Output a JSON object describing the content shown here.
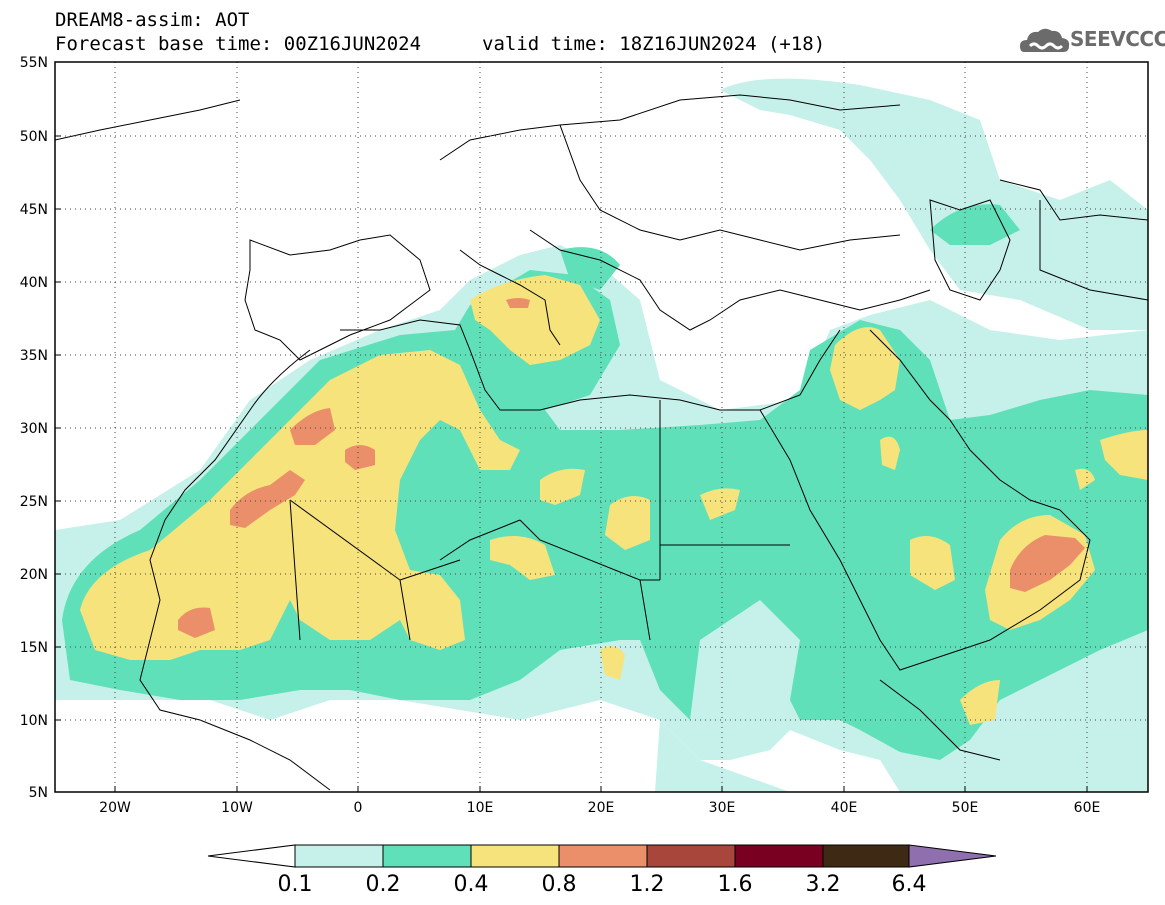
{
  "header": {
    "title": "DREAM8-assim: AOT",
    "base_time": "Forecast base time: 00Z16JUN2024",
    "valid_time": "valid time: 18Z16JUN2024 (+18)"
  },
  "logo": {
    "text": "SEEVCCC",
    "icon": "cloud-icon"
  },
  "map": {
    "lat_labels": [
      "55N",
      "50N",
      "45N",
      "40N",
      "35N",
      "30N",
      "25N",
      "20N",
      "15N",
      "10N",
      "5N"
    ],
    "lon_labels": [
      "20W",
      "10W",
      "0",
      "10E",
      "20E",
      "30E",
      "40E",
      "50E",
      "60E"
    ],
    "lat_range": [
      5,
      55
    ],
    "lon_range": [
      -25,
      65
    ],
    "field": "AOT"
  },
  "colorbar": {
    "labels": [
      "0.1",
      "0.2",
      "0.4",
      "0.8",
      "1.2",
      "1.6",
      "3.2",
      "6.4"
    ],
    "colors": [
      "#c6f1ea",
      "#5fe0b8",
      "#f6e37b",
      "#ea8f6a",
      "#a9463b",
      "#7a0022",
      "#3e2a14",
      "#8f6fae"
    ],
    "under_color": "#ffffff"
  }
}
